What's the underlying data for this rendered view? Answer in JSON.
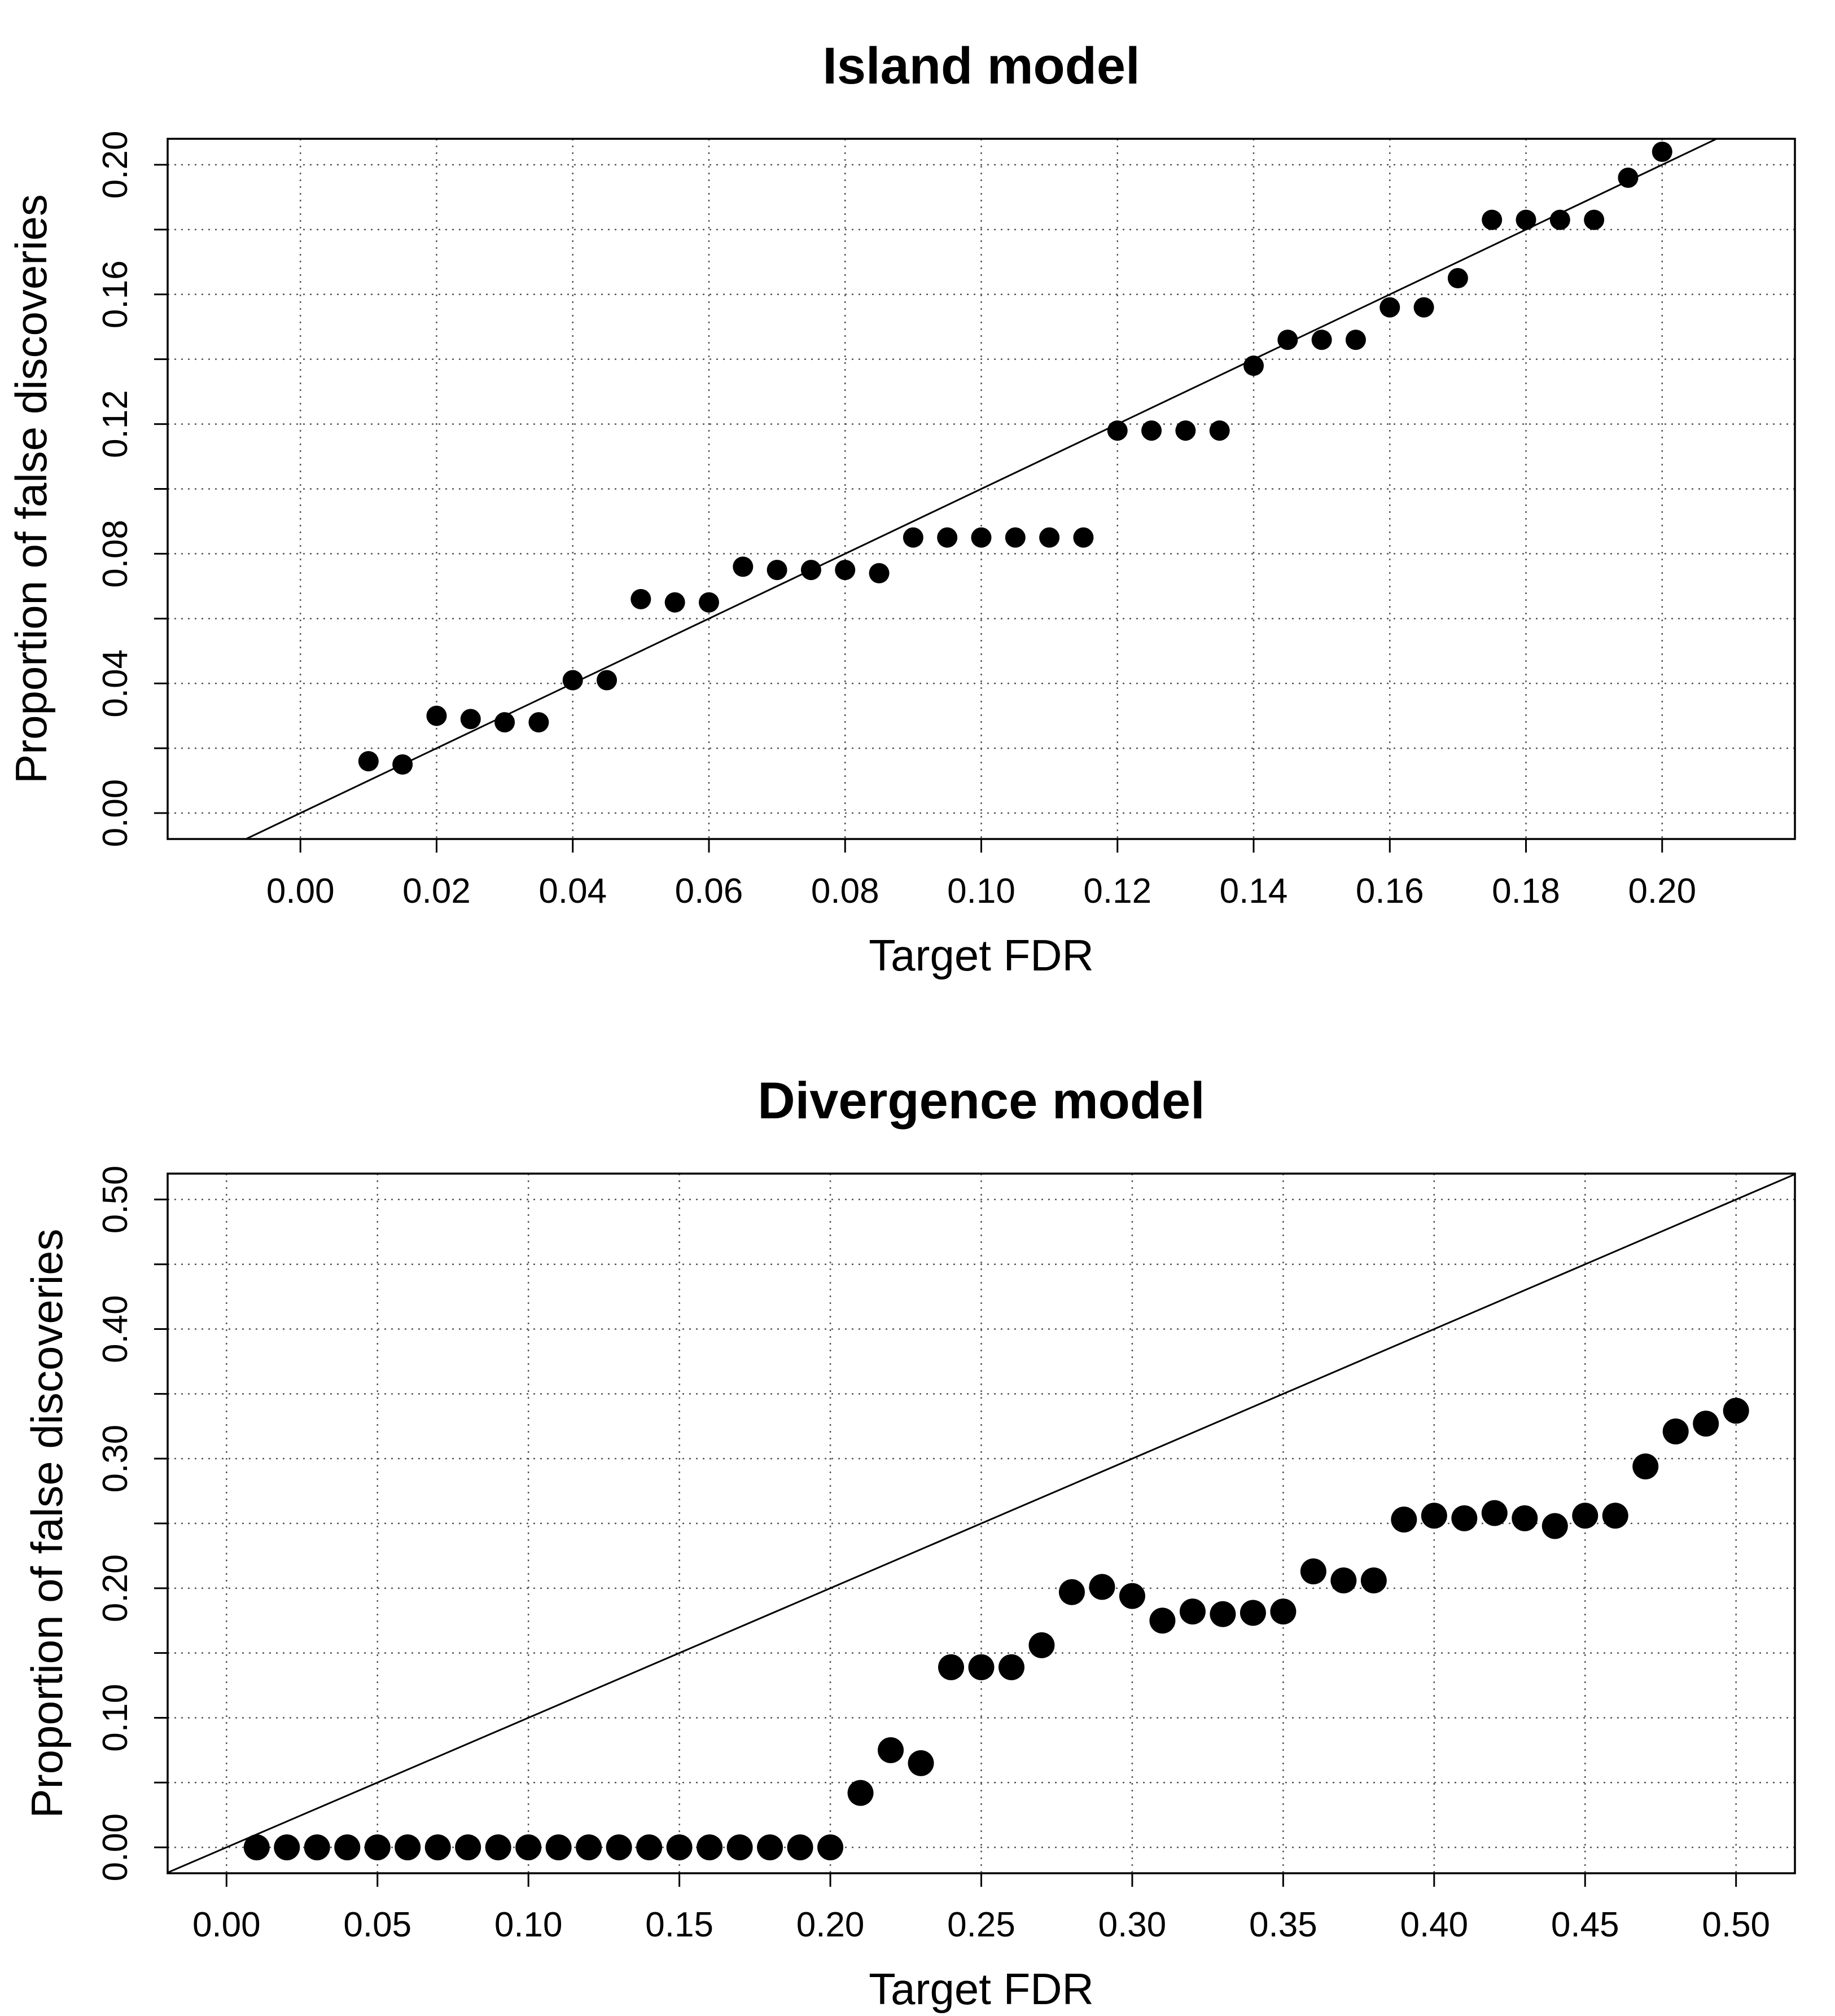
{
  "chart_data": [
    {
      "type": "scatter",
      "title": "Island model",
      "xlabel": "Target FDR",
      "ylabel": "Proportion of false discoveries",
      "xlim": [
        -0.0195,
        0.2195
      ],
      "ylim": [
        -0.008,
        0.208
      ],
      "x_ticks": [
        "0.00",
        "0.02",
        "0.04",
        "0.06",
        "0.08",
        "0.10",
        "0.12",
        "0.14",
        "0.16",
        "0.18",
        "0.20"
      ],
      "y_ticks": [
        "0.00",
        "0.04",
        "0.08",
        "0.12",
        "0.16",
        "0.20"
      ],
      "grid": true,
      "reference_line": "y = x",
      "points": [
        {
          "x": 0.01,
          "y": 0.016
        },
        {
          "x": 0.015,
          "y": 0.015
        },
        {
          "x": 0.02,
          "y": 0.03
        },
        {
          "x": 0.025,
          "y": 0.029
        },
        {
          "x": 0.03,
          "y": 0.028
        },
        {
          "x": 0.035,
          "y": 0.028
        },
        {
          "x": 0.04,
          "y": 0.041
        },
        {
          "x": 0.045,
          "y": 0.041
        },
        {
          "x": 0.05,
          "y": 0.066
        },
        {
          "x": 0.055,
          "y": 0.065
        },
        {
          "x": 0.06,
          "y": 0.065
        },
        {
          "x": 0.065,
          "y": 0.076
        },
        {
          "x": 0.07,
          "y": 0.075
        },
        {
          "x": 0.075,
          "y": 0.075
        },
        {
          "x": 0.08,
          "y": 0.075
        },
        {
          "x": 0.085,
          "y": 0.074
        },
        {
          "x": 0.09,
          "y": 0.085
        },
        {
          "x": 0.095,
          "y": 0.085
        },
        {
          "x": 0.1,
          "y": 0.085
        },
        {
          "x": 0.105,
          "y": 0.085
        },
        {
          "x": 0.11,
          "y": 0.085
        },
        {
          "x": 0.115,
          "y": 0.085
        },
        {
          "x": 0.12,
          "y": 0.118
        },
        {
          "x": 0.125,
          "y": 0.118
        },
        {
          "x": 0.13,
          "y": 0.118
        },
        {
          "x": 0.135,
          "y": 0.118
        },
        {
          "x": 0.14,
          "y": 0.138
        },
        {
          "x": 0.145,
          "y": 0.146
        },
        {
          "x": 0.15,
          "y": 0.146
        },
        {
          "x": 0.155,
          "y": 0.146
        },
        {
          "x": 0.16,
          "y": 0.156
        },
        {
          "x": 0.165,
          "y": 0.156
        },
        {
          "x": 0.17,
          "y": 0.165
        },
        {
          "x": 0.175,
          "y": 0.183
        },
        {
          "x": 0.18,
          "y": 0.183
        },
        {
          "x": 0.185,
          "y": 0.183
        },
        {
          "x": 0.19,
          "y": 0.183
        },
        {
          "x": 0.195,
          "y": 0.196
        },
        {
          "x": 0.2,
          "y": 0.204
        }
      ]
    },
    {
      "type": "scatter",
      "title": "Divergence model",
      "xlabel": "Target FDR",
      "ylabel": "Proportion of false discoveries",
      "xlim": [
        -0.0195,
        0.5195
      ],
      "ylim": [
        -0.02,
        0.52
      ],
      "x_ticks": [
        "0.00",
        "0.05",
        "0.10",
        "0.15",
        "0.20",
        "0.25",
        "0.30",
        "0.35",
        "0.40",
        "0.45",
        "0.50"
      ],
      "y_ticks": [
        "0.00",
        "0.10",
        "0.20",
        "0.30",
        "0.40",
        "0.50"
      ],
      "grid": true,
      "reference_line": "y = x",
      "points": [
        {
          "x": 0.01,
          "y": 0.0
        },
        {
          "x": 0.02,
          "y": 0.0
        },
        {
          "x": 0.03,
          "y": 0.0
        },
        {
          "x": 0.04,
          "y": 0.0
        },
        {
          "x": 0.05,
          "y": 0.0
        },
        {
          "x": 0.06,
          "y": 0.0
        },
        {
          "x": 0.07,
          "y": 0.0
        },
        {
          "x": 0.08,
          "y": 0.0
        },
        {
          "x": 0.09,
          "y": 0.0
        },
        {
          "x": 0.1,
          "y": 0.0
        },
        {
          "x": 0.11,
          "y": 0.0
        },
        {
          "x": 0.12,
          "y": 0.0
        },
        {
          "x": 0.13,
          "y": 0.0
        },
        {
          "x": 0.14,
          "y": 0.0
        },
        {
          "x": 0.15,
          "y": 0.0
        },
        {
          "x": 0.16,
          "y": 0.0
        },
        {
          "x": 0.17,
          "y": 0.0
        },
        {
          "x": 0.18,
          "y": 0.0
        },
        {
          "x": 0.19,
          "y": 0.0
        },
        {
          "x": 0.2,
          "y": 0.0
        },
        {
          "x": 0.21,
          "y": 0.042
        },
        {
          "x": 0.22,
          "y": 0.075
        },
        {
          "x": 0.23,
          "y": 0.065
        },
        {
          "x": 0.24,
          "y": 0.139
        },
        {
          "x": 0.25,
          "y": 0.139
        },
        {
          "x": 0.26,
          "y": 0.139
        },
        {
          "x": 0.27,
          "y": 0.156
        },
        {
          "x": 0.28,
          "y": 0.197
        },
        {
          "x": 0.29,
          "y": 0.201
        },
        {
          "x": 0.3,
          "y": 0.194
        },
        {
          "x": 0.31,
          "y": 0.175
        },
        {
          "x": 0.32,
          "y": 0.182
        },
        {
          "x": 0.33,
          "y": 0.18
        },
        {
          "x": 0.34,
          "y": 0.181
        },
        {
          "x": 0.35,
          "y": 0.182
        },
        {
          "x": 0.36,
          "y": 0.213
        },
        {
          "x": 0.37,
          "y": 0.206
        },
        {
          "x": 0.38,
          "y": 0.206
        },
        {
          "x": 0.39,
          "y": 0.253
        },
        {
          "x": 0.4,
          "y": 0.256
        },
        {
          "x": 0.41,
          "y": 0.254
        },
        {
          "x": 0.42,
          "y": 0.258
        },
        {
          "x": 0.43,
          "y": 0.254
        },
        {
          "x": 0.44,
          "y": 0.248
        },
        {
          "x": 0.45,
          "y": 0.256
        },
        {
          "x": 0.46,
          "y": 0.256
        },
        {
          "x": 0.47,
          "y": 0.294
        },
        {
          "x": 0.48,
          "y": 0.321
        },
        {
          "x": 0.49,
          "y": 0.327
        },
        {
          "x": 0.5,
          "y": 0.337
        }
      ]
    }
  ]
}
